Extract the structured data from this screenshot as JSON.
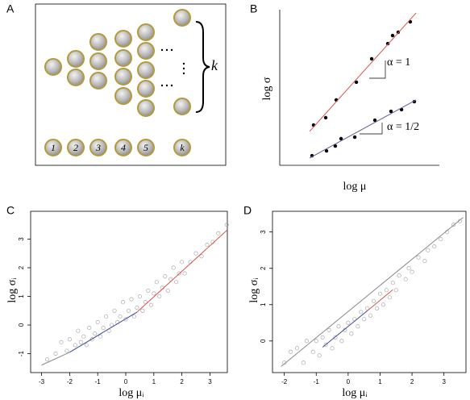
{
  "diagram": {
    "panel_label": "A",
    "k_label": "k",
    "coin_labels": [
      "1",
      "2",
      "3",
      "4",
      "5",
      "k"
    ]
  },
  "chart_data": [
    {
      "type": "scatter",
      "panel_label": "B",
      "x_label": "log μ",
      "y_label": "log σ",
      "xlim": [
        0,
        10
      ],
      "ylim": [
        0,
        10
      ],
      "series": [
        {
          "color": "#000000",
          "marker": "filled",
          "x": [
            2.12,
            2.88,
            3.54,
            4.8,
            5.76,
            6.77,
            7.07,
            7.42,
            8.18
          ],
          "values": [
            2.59,
            3.06,
            4.2,
            5.34,
            6.84,
            7.82,
            8.34,
            8.55,
            9.22
          ]
        },
        {
          "color": "#000000",
          "marker": "filled",
          "x": [
            2.02,
            2.93,
            3.48,
            3.84,
            4.7,
            5.96,
            6.97,
            7.63,
            8.43
          ],
          "values": [
            0.62,
            0.93,
            1.24,
            1.71,
            1.81,
            2.9,
            3.47,
            3.58,
            4.09
          ]
        }
      ],
      "lines": [
        {
          "color": "#d9534f",
          "x": [
            1.87,
            8.54
          ],
          "values": [
            2.18,
            9.79
          ]
        },
        {
          "color": "#5b5b9b",
          "x": [
            1.87,
            8.54
          ],
          "values": [
            0.47,
            4.2
          ]
        }
      ],
      "annotations": [
        "α = 1",
        "α = 1/2"
      ]
    },
    {
      "type": "scatter",
      "panel_label": "C",
      "x_label": "log μᵢ",
      "y_label": "log σᵢ",
      "xlim": [
        -3.39,
        3.62
      ],
      "ylim": [
        -1.66,
        3.97
      ],
      "xticks": [
        -3,
        -2,
        -1,
        0,
        1,
        2,
        3
      ],
      "yticks": [
        -1,
        0,
        1,
        2,
        3
      ],
      "series": [
        {
          "color": "#aaaaaa",
          "marker": "open",
          "x": [
            -2.8,
            -2.5,
            -2.3,
            -2.1,
            -2.0,
            -1.8,
            -1.7,
            -1.6,
            -1.5,
            -1.4,
            -1.3,
            -1.2,
            -1.1,
            -1.0,
            -0.9,
            -0.8,
            -0.7,
            -0.6,
            -0.5,
            -0.4,
            -0.3,
            -0.2,
            -0.1,
            0.0,
            0.1,
            0.2,
            0.3,
            0.4,
            0.5,
            0.6,
            0.7,
            0.8,
            0.9,
            1.0,
            1.1,
            1.2,
            1.3,
            1.4,
            1.5,
            1.6,
            1.7,
            1.8,
            1.9,
            2.0,
            2.1,
            2.3,
            2.5,
            2.7,
            2.9,
            3.1,
            3.3,
            3.6
          ],
          "values": [
            -1.2,
            -1.0,
            -0.6,
            -0.9,
            -0.5,
            -0.7,
            -0.2,
            -0.6,
            -0.4,
            -0.7,
            -0.1,
            -0.5,
            -0.3,
            0.1,
            -0.4,
            -0.1,
            0.3,
            -0.2,
            0.0,
            0.5,
            0.1,
            0.3,
            0.8,
            0.2,
            0.5,
            0.9,
            0.3,
            0.6,
            1.0,
            0.5,
            0.8,
            1.2,
            0.7,
            1.1,
            1.5,
            1.0,
            1.3,
            1.7,
            1.2,
            1.6,
            2.0,
            1.5,
            1.8,
            2.2,
            1.8,
            2.2,
            2.5,
            2.4,
            2.8,
            2.9,
            3.2,
            3.5
          ]
        }
      ],
      "lines": [
        {
          "color": "#888888",
          "x": [
            -3.0,
            -2.0
          ],
          "values": [
            -1.4,
            -0.95
          ]
        },
        {
          "color": "#3a4a9a",
          "x": [
            -2.0,
            0.4
          ],
          "values": [
            -0.95,
            0.45
          ]
        },
        {
          "color": "#d9534f",
          "x": [
            0.4,
            3.6
          ],
          "values": [
            0.45,
            3.3
          ]
        }
      ]
    },
    {
      "type": "scatter",
      "panel_label": "D",
      "x_label": "log μᵢ",
      "y_label": "log σᵢ",
      "xlim": [
        -2.37,
        3.69
      ],
      "ylim": [
        -0.87,
        3.57
      ],
      "xticks": [
        -2,
        -1,
        0,
        1,
        2,
        3
      ],
      "yticks": [
        0,
        1,
        2,
        3
      ],
      "series": [
        {
          "color": "#aaaaaa",
          "marker": "open",
          "x": [
            -2.0,
            -1.8,
            -1.6,
            -1.4,
            -1.3,
            -1.1,
            -1.0,
            -0.9,
            -0.8,
            -0.7,
            -0.6,
            -0.5,
            -0.4,
            -0.3,
            -0.2,
            -0.1,
            0.0,
            0.1,
            0.2,
            0.3,
            0.4,
            0.5,
            0.6,
            0.7,
            0.8,
            0.9,
            1.0,
            1.1,
            1.2,
            1.3,
            1.4,
            1.5,
            1.6,
            1.8,
            1.9,
            2.0,
            2.2,
            2.4,
            2.5,
            2.7,
            2.9,
            3.1,
            3.3,
            3.5
          ],
          "values": [
            -0.6,
            -0.3,
            -0.2,
            -0.6,
            0.0,
            -0.3,
            0.0,
            -0.4,
            0.1,
            -0.1,
            0.3,
            -0.2,
            0.1,
            0.4,
            0.0,
            0.3,
            0.5,
            0.2,
            0.6,
            0.4,
            0.8,
            0.6,
            0.9,
            0.7,
            1.1,
            0.9,
            1.3,
            1.0,
            1.4,
            1.2,
            1.6,
            1.4,
            1.8,
            1.7,
            2.0,
            1.9,
            2.3,
            2.2,
            2.5,
            2.6,
            2.8,
            3.0,
            3.2,
            3.3
          ]
        }
      ],
      "lines": [
        {
          "color": "#888888",
          "x": [
            -2.1,
            3.6
          ],
          "values": [
            -0.7,
            3.4
          ]
        },
        {
          "color": "#3a4a9a",
          "x": [
            -0.8,
            0.6
          ],
          "values": [
            -0.17,
            0.83
          ]
        },
        {
          "color": "#d9534f",
          "x": [
            0.6,
            1.4
          ],
          "values": [
            0.83,
            1.41
          ]
        }
      ]
    }
  ]
}
